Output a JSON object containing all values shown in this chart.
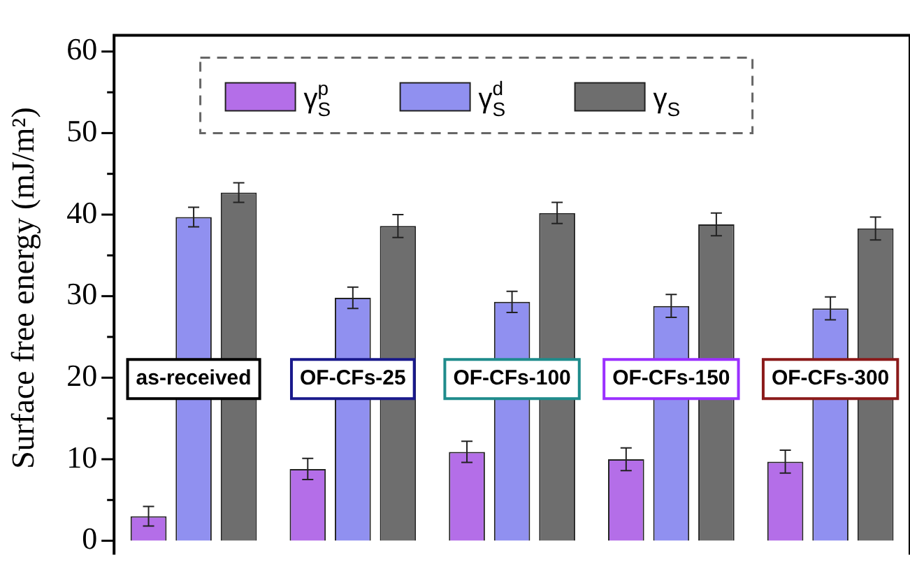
{
  "chart_data": {
    "type": "bar",
    "ylabel": "Surface free energy (mJ/m²)",
    "categories": [
      "as-received",
      "OF-CFs-25",
      "OF-CFs-100",
      "OF-CFs-150",
      "OF-CFs-300"
    ],
    "series": [
      {
        "name": "γ$^{p}$$_{S}$",
        "color": "#b46ee8",
        "values": [
          3.0,
          8.8,
          10.9,
          10.0,
          9.7
        ],
        "errors": [
          1.2,
          1.3,
          1.3,
          1.4,
          1.4
        ]
      },
      {
        "name": "γ$^{d}$$_{S}$",
        "color": "#9090f0",
        "values": [
          39.7,
          29.8,
          29.3,
          28.8,
          28.5
        ],
        "errors": [
          1.2,
          1.3,
          1.3,
          1.4,
          1.4
        ]
      },
      {
        "name": "γ$_{S}$",
        "color": "#6e6e6e",
        "values": [
          42.7,
          38.6,
          40.2,
          38.8,
          38.3
        ],
        "errors": [
          1.2,
          1.4,
          1.3,
          1.4,
          1.4
        ]
      }
    ],
    "ylim": [
      0,
      62
    ],
    "yticks": [
      0,
      {
        "value": 5,
        "label": null
      },
      10,
      {
        "value": 15,
        "label": null
      },
      20,
      {
        "value": 25,
        "label": null
      },
      30,
      {
        "value": 35,
        "label": null
      },
      40,
      {
        "value": 45,
        "label": null
      },
      50,
      {
        "value": 55,
        "label": null
      },
      60
    ],
    "grid": false,
    "legend": "top"
  }
}
